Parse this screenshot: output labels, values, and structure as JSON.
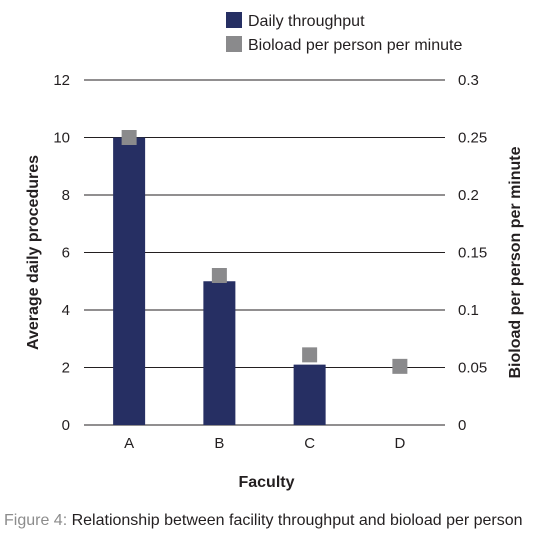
{
  "chart_data": {
    "type": "bar",
    "categories": [
      "A",
      "B",
      "C",
      "D"
    ],
    "series": [
      {
        "name": "Daily throughput",
        "kind": "bar",
        "axis": "left",
        "color": "#262f63",
        "values": [
          10,
          5,
          2.1,
          0
        ]
      },
      {
        "name": "Bioload per person per minute",
        "kind": "marker",
        "axis": "right",
        "color": "#8a8a8c",
        "values": [
          0.25,
          0.13,
          0.061,
          0.051
        ]
      }
    ],
    "xlabel": "Faculty",
    "ylabel": "Average daily procedures",
    "y2label": "Bioload per person per minute",
    "ylim": [
      0,
      12
    ],
    "y2lim": [
      0,
      0.3
    ],
    "yticks": [
      "0",
      "2",
      "4",
      "6",
      "8",
      "10",
      "12"
    ],
    "y2ticks": [
      "0",
      "0.05",
      "0.1",
      "0.15",
      "0.2",
      "0.25",
      "0.3"
    ],
    "grid": true,
    "legend_position": "top-right"
  },
  "caption": {
    "label": "Figure 4:",
    "text": " Relationship between facility throughput and bioload per person"
  }
}
